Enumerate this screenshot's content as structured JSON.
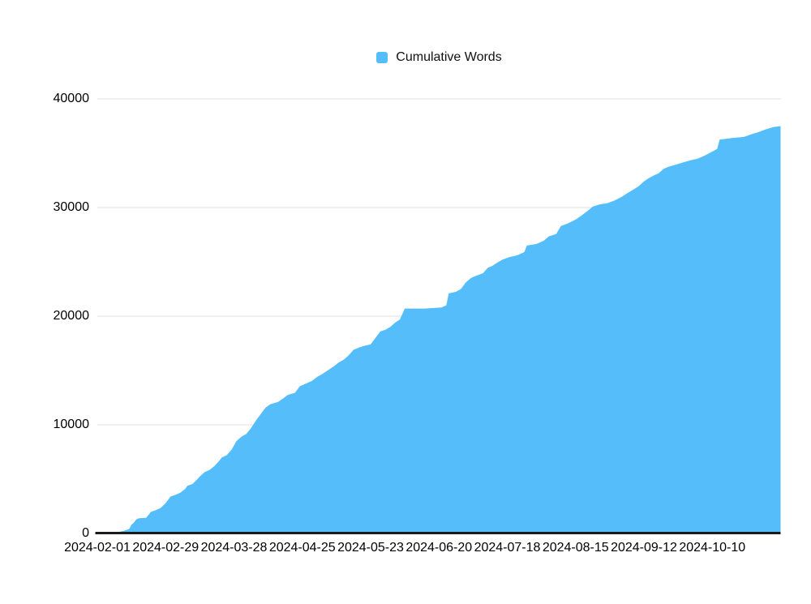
{
  "chart_data": {
    "type": "area",
    "title": "",
    "series_name": "Cumulative Words",
    "series_color": "#55BEFA",
    "gridline_color": "#E2E2E2",
    "axis_line_color": "#1B1B1D",
    "background": "#FFFFFF",
    "legend_position": "top-center",
    "grid": "horizontal",
    "x_start": "2024-02-01",
    "x_end": "2024-11-07",
    "x_tick_labels": [
      "2024-02-01",
      "2024-02-29",
      "2024-03-28",
      "2024-04-25",
      "2024-05-23",
      "2024-06-20",
      "2024-07-18",
      "2024-08-15",
      "2024-09-12",
      "2024-10-10"
    ],
    "ylim": [
      0,
      40000
    ],
    "y_tick_values": [
      0,
      10000,
      20000,
      30000,
      40000
    ],
    "y_tick_labels": [
      "0",
      "10000",
      "20000",
      "30000",
      "40000"
    ],
    "points": [
      [
        "2024-02-01",
        0
      ],
      [
        "2024-02-09",
        0
      ],
      [
        "2024-02-10",
        150
      ],
      [
        "2024-02-12",
        250
      ],
      [
        "2024-02-14",
        400
      ],
      [
        "2024-02-15",
        800
      ],
      [
        "2024-02-16",
        1000
      ],
      [
        "2024-02-17",
        1300
      ],
      [
        "2024-02-18",
        1400
      ],
      [
        "2024-02-21",
        1450
      ],
      [
        "2024-02-23",
        2000
      ],
      [
        "2024-02-25",
        2150
      ],
      [
        "2024-02-27",
        2350
      ],
      [
        "2024-02-29",
        2800
      ],
      [
        "2024-03-02",
        3400
      ],
      [
        "2024-03-04",
        3550
      ],
      [
        "2024-03-06",
        3750
      ],
      [
        "2024-03-08",
        4100
      ],
      [
        "2024-03-09",
        4400
      ],
      [
        "2024-03-11",
        4550
      ],
      [
        "2024-03-13",
        5000
      ],
      [
        "2024-03-14",
        5250
      ],
      [
        "2024-03-16",
        5650
      ],
      [
        "2024-03-18",
        5850
      ],
      [
        "2024-03-20",
        6200
      ],
      [
        "2024-03-22",
        6700
      ],
      [
        "2024-03-23",
        7000
      ],
      [
        "2024-03-25",
        7200
      ],
      [
        "2024-03-27",
        7700
      ],
      [
        "2024-03-29",
        8500
      ],
      [
        "2024-03-31",
        8900
      ],
      [
        "2024-04-02",
        9150
      ],
      [
        "2024-04-04",
        9700
      ],
      [
        "2024-04-06",
        10400
      ],
      [
        "2024-04-08",
        11000
      ],
      [
        "2024-04-10",
        11600
      ],
      [
        "2024-04-12",
        11900
      ],
      [
        "2024-04-15",
        12100
      ],
      [
        "2024-04-17",
        12400
      ],
      [
        "2024-04-19",
        12750
      ],
      [
        "2024-04-22",
        12950
      ],
      [
        "2024-04-24",
        13550
      ],
      [
        "2024-04-26",
        13750
      ],
      [
        "2024-04-29",
        14050
      ],
      [
        "2024-05-01",
        14400
      ],
      [
        "2024-05-03",
        14650
      ],
      [
        "2024-05-06",
        15100
      ],
      [
        "2024-05-08",
        15400
      ],
      [
        "2024-05-10",
        15750
      ],
      [
        "2024-05-12",
        16000
      ],
      [
        "2024-05-14",
        16400
      ],
      [
        "2024-05-16",
        16900
      ],
      [
        "2024-05-18",
        17100
      ],
      [
        "2024-05-20",
        17250
      ],
      [
        "2024-05-23",
        17400
      ],
      [
        "2024-05-25",
        18000
      ],
      [
        "2024-05-27",
        18600
      ],
      [
        "2024-05-29",
        18750
      ],
      [
        "2024-05-31",
        19000
      ],
      [
        "2024-06-02",
        19400
      ],
      [
        "2024-06-04",
        19700
      ],
      [
        "2024-06-06",
        20700
      ],
      [
        "2024-06-14",
        20700
      ],
      [
        "2024-06-21",
        20800
      ],
      [
        "2024-06-23",
        21000
      ],
      [
        "2024-06-24",
        22100
      ],
      [
        "2024-06-27",
        22250
      ],
      [
        "2024-06-29",
        22500
      ],
      [
        "2024-07-01",
        23100
      ],
      [
        "2024-07-03",
        23500
      ],
      [
        "2024-07-05",
        23700
      ],
      [
        "2024-07-08",
        23950
      ],
      [
        "2024-07-10",
        24450
      ],
      [
        "2024-07-12",
        24650
      ],
      [
        "2024-07-14",
        24950
      ],
      [
        "2024-07-16",
        25200
      ],
      [
        "2024-07-19",
        25450
      ],
      [
        "2024-07-22",
        25600
      ],
      [
        "2024-07-25",
        25900
      ],
      [
        "2024-07-26",
        26500
      ],
      [
        "2024-07-30",
        26650
      ],
      [
        "2024-08-02",
        26950
      ],
      [
        "2024-08-04",
        27350
      ],
      [
        "2024-08-07",
        27550
      ],
      [
        "2024-08-09",
        28300
      ],
      [
        "2024-08-12",
        28550
      ],
      [
        "2024-08-15",
        28900
      ],
      [
        "2024-08-17",
        29200
      ],
      [
        "2024-08-20",
        29700
      ],
      [
        "2024-08-22",
        30100
      ],
      [
        "2024-08-25",
        30300
      ],
      [
        "2024-08-28",
        30400
      ],
      [
        "2024-08-31",
        30650
      ],
      [
        "2024-09-03",
        31000
      ],
      [
        "2024-09-05",
        31300
      ],
      [
        "2024-09-08",
        31700
      ],
      [
        "2024-09-10",
        32000
      ],
      [
        "2024-09-12",
        32400
      ],
      [
        "2024-09-14",
        32700
      ],
      [
        "2024-09-16",
        32950
      ],
      [
        "2024-09-18",
        33150
      ],
      [
        "2024-09-20",
        33550
      ],
      [
        "2024-09-22",
        33750
      ],
      [
        "2024-09-25",
        33950
      ],
      [
        "2024-09-28",
        34150
      ],
      [
        "2024-10-01",
        34350
      ],
      [
        "2024-10-04",
        34500
      ],
      [
        "2024-10-07",
        34800
      ],
      [
        "2024-10-10",
        35150
      ],
      [
        "2024-10-12",
        35400
      ],
      [
        "2024-10-13",
        36250
      ],
      [
        "2024-10-18",
        36400
      ],
      [
        "2024-10-23",
        36500
      ],
      [
        "2024-10-26",
        36750
      ],
      [
        "2024-10-29",
        36950
      ],
      [
        "2024-11-01",
        37200
      ],
      [
        "2024-11-04",
        37400
      ],
      [
        "2024-11-07",
        37500
      ]
    ]
  }
}
